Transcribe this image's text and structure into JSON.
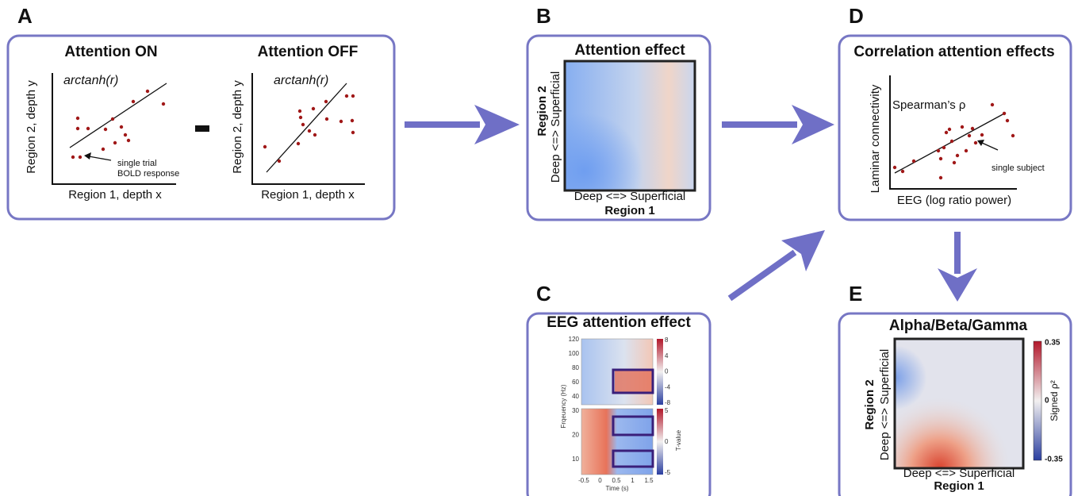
{
  "panels": {
    "A": {
      "letter": "A",
      "on": {
        "title": "Attention ON",
        "formula": "arctanh(r)",
        "y_label": "Region 2, depth y",
        "x_label": "Region 1, depth x",
        "annotation": [
          "single trial",
          "BOLD response"
        ]
      },
      "off": {
        "title": "Attention OFF",
        "formula": "arctanh(r)",
        "y_label": "Region 2, depth y",
        "x_label": "Region 1, depth x"
      }
    },
    "B": {
      "letter": "B",
      "title": "Attention effect",
      "y_label": "Region 2",
      "y_sublabel": "Deep <=> Superficial",
      "x_sublabel": "Deep <=> Superficial",
      "x_label": "Region 1"
    },
    "C": {
      "letter": "C",
      "title": "EEG attention effect",
      "y_label": "Frqeuency (Hz)",
      "x_label": "Time (s)",
      "colorbar_label": "T-value",
      "top_yticks": [
        "120",
        "100",
        "80",
        "60",
        "40"
      ],
      "bottom_yticks": [
        "30",
        "20",
        "10"
      ],
      "xticks": [
        "-0.5",
        "0",
        "0.5",
        "1",
        "1.5"
      ],
      "top_cbar_ticks": [
        "8",
        "4",
        "0",
        "-4",
        "-8"
      ],
      "bottom_cbar_ticks": [
        "5",
        "0",
        "-5"
      ]
    },
    "D": {
      "letter": "D",
      "title": "Correlation attention effects",
      "stat": "Spearman’s ρ",
      "y_label": "Laminar connectivity",
      "x_label": "EEG (log ratio power)",
      "annotation": "single subject"
    },
    "E": {
      "letter": "E",
      "title": "Alpha/Beta/Gamma",
      "y_label": "Region 2",
      "y_sublabel": "Deep <=> Superficial",
      "x_sublabel": "Deep <=> Superficial",
      "x_label": "Region 1",
      "cbar_ticks": [
        "0.35",
        "0",
        "-0.35"
      ],
      "cbar_label": "Signed ρ²"
    }
  }
}
